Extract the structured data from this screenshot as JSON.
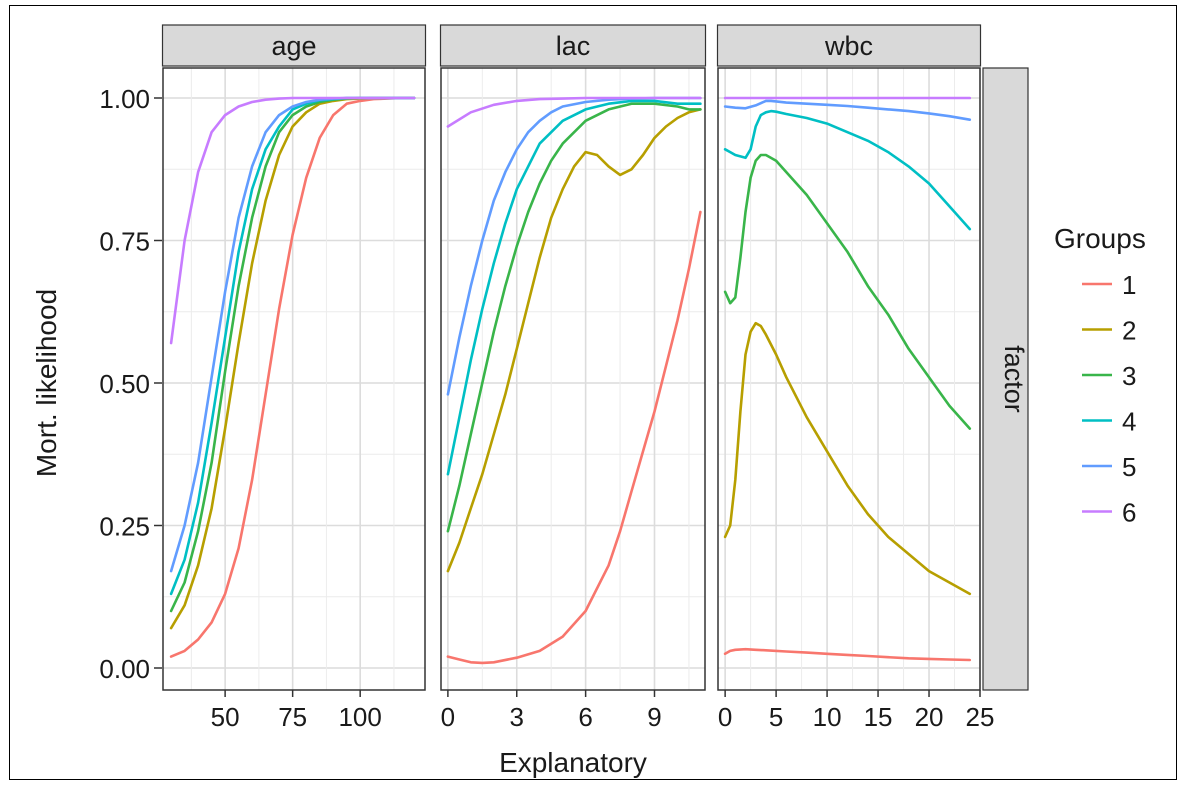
{
  "chart_data": {
    "type": "line",
    "ylabel": "Mort. likelihood",
    "xlabel": "Explanatory",
    "row_strip": "factor",
    "ylim": [
      0,
      1
    ],
    "yticks": [
      "0.00",
      "0.25",
      "0.50",
      "0.75",
      "1.00"
    ],
    "grid": true,
    "legend": {
      "title": "Groups",
      "position": "right",
      "entries": [
        "1",
        "2",
        "3",
        "4",
        "5",
        "6"
      ],
      "colors": [
        "#f8766d",
        "#b79f00",
        "#39b54a",
        "#00bfc4",
        "#619cff",
        "#c77cff"
      ]
    },
    "panels": [
      {
        "strip": "age",
        "xlim": [
          27,
          124
        ],
        "xticks": [
          50,
          75,
          100
        ],
        "series": [
          {
            "name": "1",
            "x": [
              30,
              35,
              40,
              45,
              50,
              55,
              60,
              65,
              70,
              75,
              80,
              85,
              90,
              95,
              100,
              105,
              110,
              115,
              120
            ],
            "y": [
              0.02,
              0.03,
              0.05,
              0.08,
              0.13,
              0.21,
              0.33,
              0.48,
              0.63,
              0.76,
              0.86,
              0.93,
              0.97,
              0.99,
              0.995,
              0.998,
              0.999,
              1.0,
              1.0
            ]
          },
          {
            "name": "2",
            "x": [
              30,
              35,
              40,
              45,
              50,
              55,
              60,
              65,
              70,
              75,
              80,
              85,
              90,
              95,
              100,
              105,
              110,
              115,
              120
            ],
            "y": [
              0.07,
              0.11,
              0.18,
              0.28,
              0.42,
              0.57,
              0.71,
              0.82,
              0.9,
              0.95,
              0.975,
              0.99,
              0.995,
              0.998,
              0.999,
              1.0,
              1.0,
              1.0,
              1.0
            ]
          },
          {
            "name": "3",
            "x": [
              30,
              35,
              40,
              45,
              50,
              55,
              60,
              65,
              70,
              75,
              80,
              85,
              90,
              95,
              100,
              105,
              110,
              115,
              120
            ],
            "y": [
              0.1,
              0.15,
              0.24,
              0.36,
              0.52,
              0.67,
              0.79,
              0.88,
              0.94,
              0.97,
              0.985,
              0.993,
              0.997,
              0.999,
              1.0,
              1.0,
              1.0,
              1.0,
              1.0
            ]
          },
          {
            "name": "4",
            "x": [
              30,
              35,
              40,
              45,
              50,
              55,
              60,
              65,
              70,
              75,
              80,
              85,
              90,
              95,
              100,
              105,
              110,
              115,
              120
            ],
            "y": [
              0.13,
              0.19,
              0.29,
              0.43,
              0.58,
              0.73,
              0.84,
              0.91,
              0.95,
              0.98,
              0.99,
              0.996,
              0.998,
              1.0,
              1.0,
              1.0,
              1.0,
              1.0,
              1.0
            ]
          },
          {
            "name": "5",
            "x": [
              30,
              35,
              40,
              45,
              50,
              55,
              60,
              65,
              70,
              75,
              80,
              85,
              90,
              95,
              100,
              105,
              110,
              115,
              120
            ],
            "y": [
              0.17,
              0.25,
              0.36,
              0.51,
              0.66,
              0.79,
              0.88,
              0.94,
              0.97,
              0.985,
              0.993,
              0.997,
              0.999,
              1.0,
              1.0,
              1.0,
              1.0,
              1.0,
              1.0
            ]
          },
          {
            "name": "6",
            "x": [
              30,
              35,
              40,
              45,
              50,
              55,
              60,
              65,
              70,
              75,
              80,
              85,
              90,
              95,
              100,
              105,
              110,
              115,
              120
            ],
            "y": [
              0.57,
              0.75,
              0.87,
              0.94,
              0.97,
              0.985,
              0.993,
              0.997,
              0.999,
              1.0,
              1.0,
              1.0,
              1.0,
              1.0,
              1.0,
              1.0,
              1.0,
              1.0,
              1.0
            ]
          }
        ]
      },
      {
        "strip": "lac",
        "xlim": [
          -0.3,
          11.2
        ],
        "xticks": [
          0,
          3,
          6,
          9
        ],
        "series": [
          {
            "name": "1",
            "x": [
              0,
              0.5,
              1,
              1.5,
              2,
              3,
              4,
              5,
              6,
              7,
              7.5,
              8,
              8.5,
              9,
              9.5,
              10,
              10.5,
              11
            ],
            "y": [
              0.02,
              0.015,
              0.01,
              0.009,
              0.01,
              0.018,
              0.03,
              0.055,
              0.1,
              0.18,
              0.24,
              0.31,
              0.38,
              0.45,
              0.53,
              0.61,
              0.7,
              0.8
            ]
          },
          {
            "name": "2",
            "x": [
              0,
              0.5,
              1,
              1.5,
              2,
              2.5,
              3,
              3.5,
              4,
              4.5,
              5,
              5.5,
              6,
              6.5,
              7,
              7.5,
              8,
              8.5,
              9,
              9.5,
              10,
              10.5,
              11
            ],
            "y": [
              0.17,
              0.22,
              0.28,
              0.34,
              0.41,
              0.48,
              0.56,
              0.64,
              0.72,
              0.79,
              0.84,
              0.88,
              0.905,
              0.9,
              0.88,
              0.865,
              0.875,
              0.9,
              0.93,
              0.95,
              0.965,
              0.975,
              0.98
            ]
          },
          {
            "name": "3",
            "x": [
              0,
              0.5,
              1,
              1.5,
              2,
              2.5,
              3,
              3.5,
              4,
              4.5,
              5,
              6,
              7,
              8,
              9,
              10,
              10.5,
              11
            ],
            "y": [
              0.24,
              0.32,
              0.41,
              0.5,
              0.59,
              0.67,
              0.74,
              0.8,
              0.85,
              0.89,
              0.92,
              0.96,
              0.98,
              0.99,
              0.99,
              0.985,
              0.98,
              0.98
            ]
          },
          {
            "name": "4",
            "x": [
              0,
              0.5,
              1,
              1.5,
              2,
              2.5,
              3,
              3.5,
              4,
              4.5,
              5,
              6,
              7,
              8,
              9,
              10,
              11
            ],
            "y": [
              0.34,
              0.44,
              0.54,
              0.63,
              0.71,
              0.78,
              0.84,
              0.88,
              0.92,
              0.94,
              0.96,
              0.98,
              0.99,
              0.995,
              0.995,
              0.99,
              0.99
            ]
          },
          {
            "name": "5",
            "x": [
              0,
              0.5,
              1,
              1.5,
              2,
              2.5,
              3,
              3.5,
              4,
              4.5,
              5,
              6,
              7,
              8,
              9,
              10,
              11
            ],
            "y": [
              0.48,
              0.58,
              0.67,
              0.75,
              0.82,
              0.87,
              0.91,
              0.94,
              0.96,
              0.975,
              0.985,
              0.993,
              0.997,
              0.999,
              1.0,
              1.0,
              1.0
            ]
          },
          {
            "name": "6",
            "x": [
              0,
              1,
              2,
              3,
              4,
              5,
              6,
              7,
              8,
              9,
              10,
              11
            ],
            "y": [
              0.95,
              0.975,
              0.988,
              0.995,
              0.998,
              0.999,
              1.0,
              1.0,
              1.0,
              1.0,
              1.0,
              1.0
            ]
          }
        ]
      },
      {
        "strip": "wbc",
        "xlim": [
          -0.7,
          25
        ],
        "xticks": [
          0,
          5,
          10,
          15,
          20,
          25
        ],
        "series": [
          {
            "name": "1",
            "x": [
              0,
              0.5,
              1,
              2,
              3,
              4,
              6,
              8,
              10,
              12,
              14,
              16,
              18,
              20,
              22,
              24
            ],
            "y": [
              0.025,
              0.03,
              0.032,
              0.033,
              0.032,
              0.031,
              0.029,
              0.027,
              0.025,
              0.023,
              0.021,
              0.019,
              0.017,
              0.016,
              0.015,
              0.014
            ]
          },
          {
            "name": "2",
            "x": [
              0,
              0.5,
              1,
              1.5,
              2,
              2.5,
              3,
              3.5,
              4,
              5,
              6,
              8,
              10,
              12,
              14,
              16,
              18,
              20,
              22,
              24
            ],
            "y": [
              0.23,
              0.25,
              0.33,
              0.45,
              0.55,
              0.59,
              0.605,
              0.6,
              0.585,
              0.55,
              0.51,
              0.44,
              0.38,
              0.32,
              0.27,
              0.23,
              0.2,
              0.17,
              0.15,
              0.13
            ]
          },
          {
            "name": "3",
            "x": [
              0,
              0.5,
              1,
              1.5,
              2,
              2.5,
              3,
              3.5,
              4,
              5,
              6,
              8,
              10,
              12,
              14,
              16,
              18,
              20,
              22,
              24
            ],
            "y": [
              0.66,
              0.64,
              0.65,
              0.72,
              0.8,
              0.86,
              0.89,
              0.9,
              0.9,
              0.89,
              0.87,
              0.83,
              0.78,
              0.73,
              0.67,
              0.62,
              0.56,
              0.51,
              0.46,
              0.42
            ]
          },
          {
            "name": "4",
            "x": [
              0,
              0.5,
              1,
              2,
              2.5,
              3,
              3.5,
              4,
              4.5,
              5,
              6,
              8,
              10,
              12,
              14,
              16,
              18,
              20,
              22,
              24
            ],
            "y": [
              0.91,
              0.905,
              0.9,
              0.895,
              0.91,
              0.95,
              0.97,
              0.975,
              0.977,
              0.976,
              0.972,
              0.965,
              0.955,
              0.94,
              0.925,
              0.905,
              0.88,
              0.85,
              0.81,
              0.77
            ]
          },
          {
            "name": "5",
            "x": [
              0,
              1,
              2,
              3,
              4,
              4.5,
              5,
              6,
              8,
              10,
              12,
              14,
              16,
              18,
              20,
              22,
              24
            ],
            "y": [
              0.985,
              0.983,
              0.982,
              0.987,
              0.995,
              0.995,
              0.994,
              0.992,
              0.99,
              0.988,
              0.986,
              0.983,
              0.98,
              0.977,
              0.973,
              0.968,
              0.962
            ]
          },
          {
            "name": "6",
            "x": [
              0,
              4,
              8,
              12,
              16,
              20,
              24
            ],
            "y": [
              1.0,
              1.0,
              1.0,
              1.0,
              1.0,
              1.0,
              1.0
            ]
          }
        ]
      }
    ]
  }
}
